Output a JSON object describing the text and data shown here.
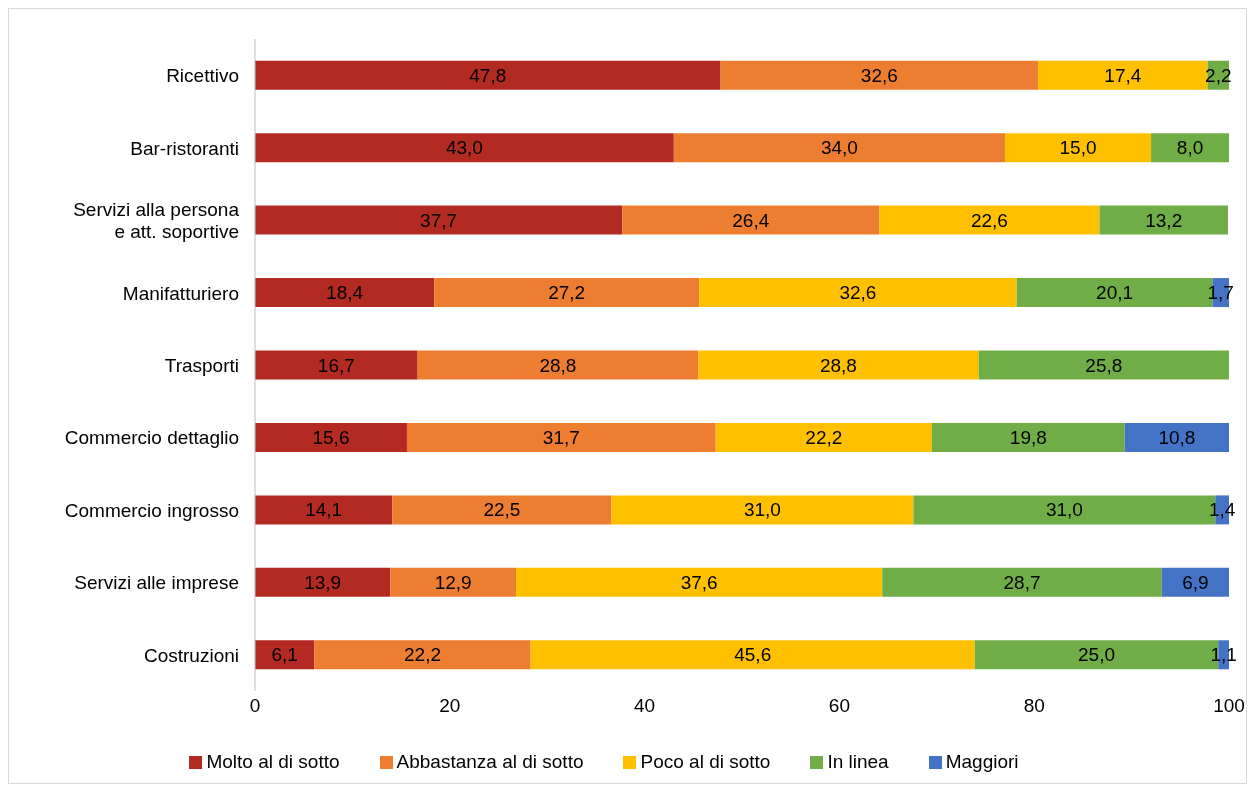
{
  "chart_data": {
    "type": "bar",
    "orientation": "horizontal",
    "stacked": true,
    "categories": [
      "Ricettivo",
      "Bar-ristoranti",
      "Servizi alla persona e att. soportive",
      "Manifatturiero",
      "Trasporti",
      "Commercio dettaglio",
      "Commercio ingrosso",
      "Servizi alle imprese",
      "Costruzioni"
    ],
    "series": [
      {
        "name": "Molto al di sotto",
        "color": "#b22a22",
        "values": [
          47.8,
          43.0,
          37.7,
          18.4,
          16.7,
          15.6,
          14.1,
          13.9,
          6.1
        ],
        "value_labels": [
          "47,8",
          "43,0",
          "37,7",
          "18,4",
          "16,7",
          "15,6",
          "14,1",
          "13,9",
          "6,1"
        ]
      },
      {
        "name": "Abbastanza al di sotto",
        "color": "#ed7d31",
        "values": [
          32.6,
          34.0,
          26.4,
          27.2,
          28.8,
          31.7,
          22.5,
          12.9,
          22.2
        ],
        "value_labels": [
          "32,6",
          "34,0",
          "26,4",
          "27,2",
          "28,8",
          "31,7",
          "22,5",
          "12,9",
          "22,2"
        ]
      },
      {
        "name": "Poco al di sotto",
        "color": "#ffc000",
        "values": [
          17.4,
          15.0,
          22.6,
          32.6,
          28.8,
          22.2,
          31.0,
          37.6,
          45.6
        ],
        "value_labels": [
          "17,4",
          "15,0",
          "22,6",
          "32,6",
          "28,8",
          "22,2",
          "31,0",
          "37,6",
          "45,6"
        ]
      },
      {
        "name": "In linea",
        "color": "#70ad47",
        "values": [
          2.2,
          8.0,
          13.2,
          20.1,
          25.8,
          19.8,
          31.0,
          28.7,
          25.0
        ],
        "value_labels": [
          "2,2",
          "8,0",
          "13,2",
          "20,1",
          "25,8",
          "19,8",
          "31,0",
          "28,7",
          "25,0"
        ]
      },
      {
        "name": "Maggiori",
        "color": "#4472c4",
        "values": [
          null,
          null,
          null,
          1.7,
          null,
          10.8,
          1.4,
          6.9,
          1.1
        ],
        "value_labels": [
          null,
          null,
          null,
          "1,7",
          null,
          "10,8",
          "1,4",
          "6,9",
          "1,1"
        ]
      }
    ],
    "xlim": [
      0,
      100
    ],
    "xticks": [
      0,
      20,
      40,
      60,
      80,
      100
    ],
    "grid": false,
    "legend": "bottom"
  }
}
